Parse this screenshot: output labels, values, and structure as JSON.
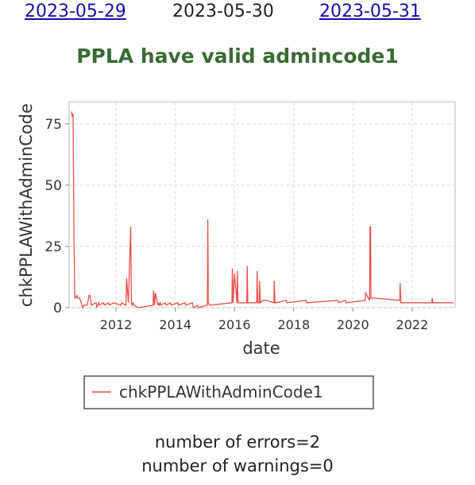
{
  "nav": {
    "prev": "2023-05-29",
    "current": "2023-05-30",
    "next": "2023-05-31"
  },
  "title": "PPLA have valid admincode1",
  "chart_data": {
    "type": "line",
    "title": "",
    "xlabel": "date",
    "ylabel": "chkPPLAWithAdminCode",
    "xlim": [
      "2010-06-01",
      "2023-06-15"
    ],
    "ylim": [
      0,
      84
    ],
    "xticks": [
      "2012",
      "2014",
      "2016",
      "2018",
      "2020",
      "2022"
    ],
    "yticks": [
      0,
      25,
      50,
      75
    ],
    "grid": true,
    "legend_position": "bottom-center",
    "color": "#e8504a",
    "series": [
      {
        "name": "chkPPLAWithAdminCode1",
        "x": [
          "2010-07-01",
          "2010-07-08",
          "2010-07-20",
          "2010-08-01",
          "2010-08-05",
          "2010-08-09",
          "2010-08-12",
          "2010-08-20",
          "2010-09-05",
          "2010-09-15",
          "2010-10-01",
          "2010-10-20",
          "2010-11-15",
          "2010-12-01",
          "2011-01-10",
          "2011-02-01",
          "2011-02-15",
          "2011-03-01",
          "2011-05-01",
          "2011-05-10",
          "2011-06-01",
          "2011-06-10",
          "2011-08-01",
          "2011-08-10",
          "2011-10-01",
          "2011-10-10",
          "2011-12-01",
          "2012-03-01",
          "2012-03-10",
          "2012-05-01",
          "2012-05-10",
          "2012-06-01",
          "2012-06-30",
          "2012-07-08",
          "2012-07-15",
          "2012-08-01",
          "2012-08-10",
          "2012-10-01",
          "2013-04-01",
          "2013-04-08",
          "2013-04-20",
          "2013-05-01",
          "2013-06-01",
          "2013-06-08",
          "2013-06-15",
          "2013-07-01",
          "2013-07-05",
          "2013-09-01",
          "2013-09-10",
          "2013-11-01",
          "2013-11-10",
          "2014-02-01",
          "2014-02-10",
          "2014-05-01",
          "2014-05-10",
          "2014-08-01",
          "2014-08-10",
          "2014-10-01",
          "2014-10-10",
          "2015-02-01",
          "2015-02-06",
          "2015-02-12",
          "2015-03-01",
          "2015-12-01",
          "2015-12-06",
          "2015-12-14",
          "2016-01-01",
          "2016-02-01",
          "2016-02-06",
          "2016-02-14",
          "2016-03-01",
          "2016-06-01",
          "2016-06-06",
          "2016-06-14",
          "2016-07-01",
          "2016-10-01",
          "2016-10-06",
          "2016-10-14",
          "2016-11-01",
          "2016-11-06",
          "2016-11-14",
          "2016-12-15",
          "2017-02-01",
          "2017-05-01",
          "2017-05-06",
          "2017-05-14",
          "2017-06-01",
          "2017-10-01",
          "2017-10-10",
          "2018-06-01",
          "2018-06-10",
          "2019-07-01",
          "2019-07-10",
          "2019-10-01",
          "2019-10-10",
          "2020-06-01",
          "2020-06-06",
          "2020-07-25",
          "2020-07-30",
          "2020-08-05",
          "2020-08-10",
          "2021-08-01",
          "2021-08-06",
          "2021-08-14",
          "2022-09-01",
          "2022-09-06",
          "2022-09-14",
          "2023-05-30"
        ],
        "values": [
          80,
          78,
          79,
          26,
          20,
          5,
          4,
          4,
          5,
          4,
          4,
          3,
          0,
          1,
          1,
          5,
          5,
          1,
          2,
          0,
          2,
          1,
          2,
          1,
          2,
          1,
          2,
          1,
          2,
          1,
          12,
          2,
          33,
          2,
          1,
          2,
          1,
          0,
          1,
          7,
          1,
          6,
          1,
          2,
          1,
          2,
          1,
          2,
          1,
          2,
          1,
          2,
          1,
          2,
          1,
          2,
          0,
          1,
          0,
          1,
          36,
          2,
          1,
          2,
          16,
          2,
          14,
          2,
          15,
          2,
          2,
          2,
          17,
          2,
          2,
          2,
          15,
          2,
          2,
          11,
          2,
          3,
          3,
          2,
          11,
          2,
          2,
          3,
          2,
          3,
          2,
          3,
          2,
          3,
          2,
          3,
          6,
          3,
          33,
          33,
          4,
          3,
          10,
          2,
          2,
          4,
          2,
          2
        ]
      }
    ]
  },
  "stats": {
    "errors": "number of errors=2",
    "warnings": "number of warnings=0"
  }
}
